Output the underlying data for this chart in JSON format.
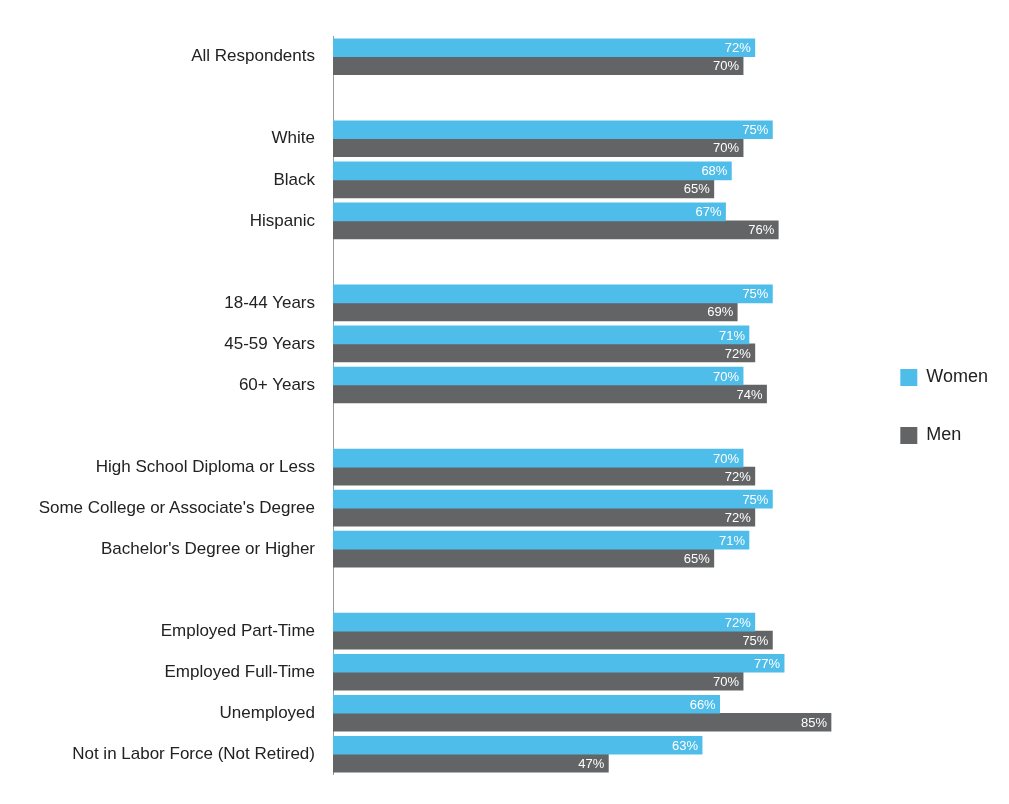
{
  "chart_data": {
    "type": "bar",
    "orientation": "horizontal",
    "categories": [
      "All Respondents",
      null,
      "White",
      "Black",
      "Hispanic",
      null,
      "18-44 Years",
      "45-59 Years",
      "60+ Years",
      null,
      "High School Diploma or Less",
      "Some College or Associate's Degree",
      "Bachelor's Degree or Higher",
      null,
      "Employed Part-Time",
      "Employed Full-Time",
      "Unemployed",
      "Not in Labor Force (Not Retired)"
    ],
    "series": [
      {
        "name": "Women",
        "color": "#4fbde9",
        "values": [
          72,
          null,
          75,
          68,
          67,
          null,
          75,
          71,
          70,
          null,
          70,
          75,
          71,
          null,
          72,
          77,
          66,
          63
        ],
        "value_labels": [
          "72%",
          null,
          "75%",
          "68%",
          "67%",
          null,
          "75%",
          "71%",
          "70%",
          null,
          "70%",
          "75%",
          "71%",
          null,
          "72%",
          "77%",
          "66%",
          "63%"
        ]
      },
      {
        "name": "Men",
        "color": "#636466",
        "values": [
          70,
          null,
          70,
          65,
          76,
          null,
          69,
          72,
          74,
          null,
          72,
          72,
          65,
          null,
          75,
          70,
          85,
          47
        ],
        "value_labels": [
          "70%",
          null,
          "70%",
          "65%",
          "76%",
          null,
          "69%",
          "72%",
          "74%",
          null,
          "72%",
          "72%",
          "65%",
          null,
          "75%",
          "70%",
          "85%",
          "47%"
        ]
      }
    ],
    "legend": "right"
  }
}
